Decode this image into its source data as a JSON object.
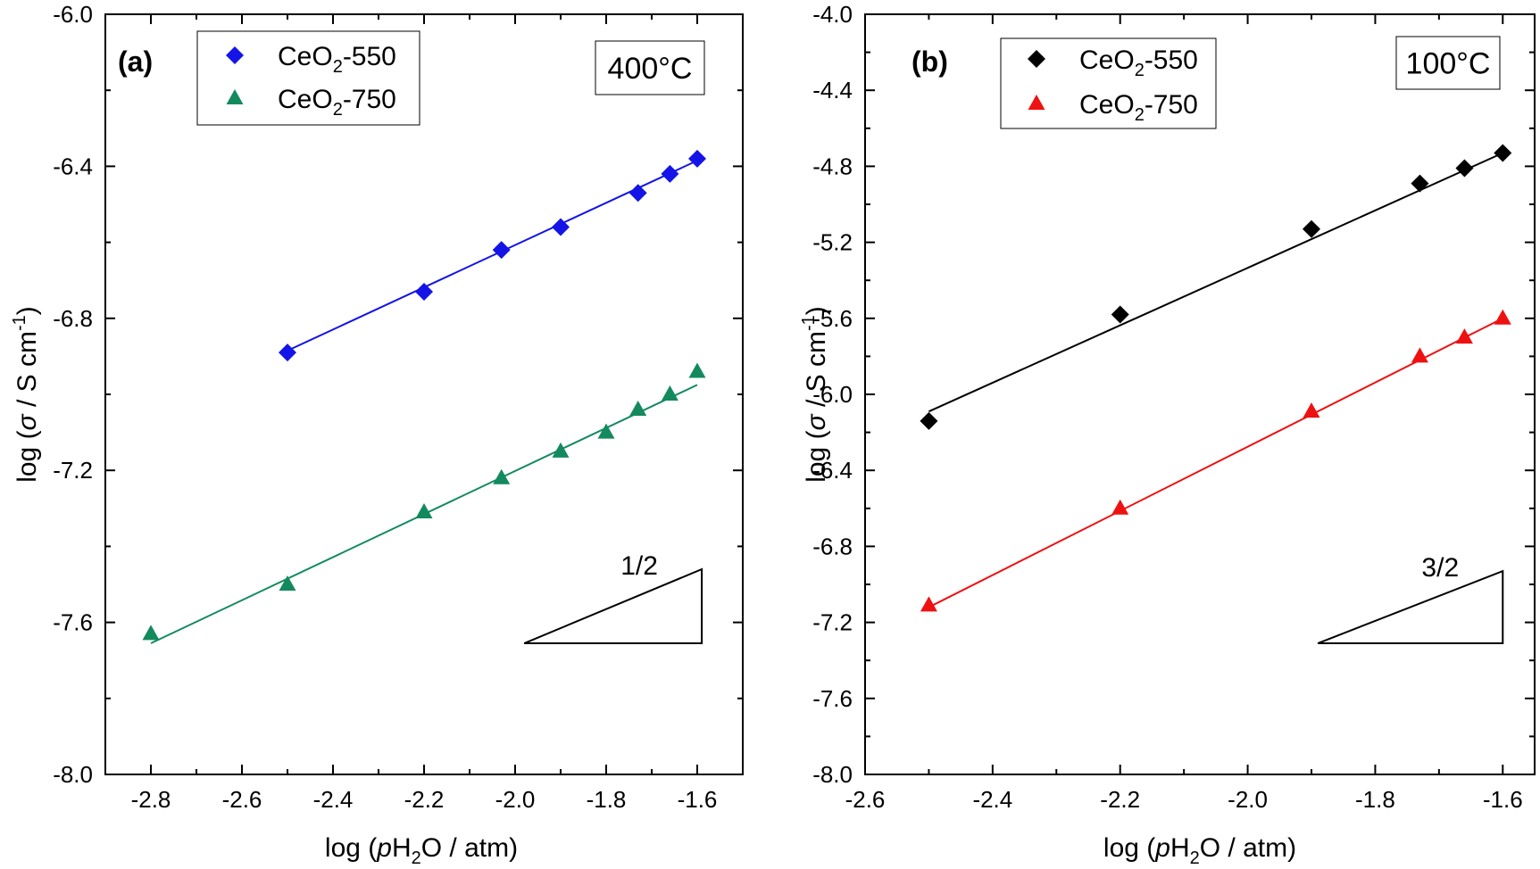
{
  "chart_data": [
    {
      "type": "scatter",
      "panel_label": "(a)",
      "temperature": "400°C",
      "xlabel": {
        "pre": "log (",
        "italic": "p",
        "main": "H",
        "sub": "2",
        "post": "O / atm)"
      },
      "ylabel": {
        "pre": "log (",
        "italic": "σ",
        "post": " / S cm",
        "sup": "-1",
        "close": ")"
      },
      "xlim": [
        -2.9,
        -1.5
      ],
      "ylim": [
        -8.0,
        -6.0
      ],
      "xticks": [
        -2.8,
        -2.6,
        -2.4,
        -2.2,
        -2.0,
        -1.8,
        -1.6
      ],
      "xtick_labels": [
        "-2.8",
        "-2.6",
        "-2.4",
        "-2.2",
        "-2.0",
        "-1.8",
        "-1.6"
      ],
      "yticks": [
        -8.0,
        -7.6,
        -7.2,
        -6.8,
        -6.4,
        -6.0
      ],
      "ytick_labels": [
        "-8.0",
        "-7.6",
        "-7.2",
        "-6.8",
        "-6.4",
        "-6.0"
      ],
      "legend_position": "top-left",
      "series": [
        {
          "name": "CeO₂-550",
          "name_main": "CeO",
          "name_sub": "2",
          "name_post": "-550",
          "marker": "diamond",
          "color": "#1414e6",
          "x": [
            -2.5,
            -2.2,
            -2.03,
            -1.9,
            -1.73,
            -1.66,
            -1.6
          ],
          "y": [
            -6.89,
            -6.73,
            -6.62,
            -6.56,
            -6.47,
            -6.42,
            -6.38
          ],
          "fit": {
            "x": [
              -2.5,
              -1.6
            ],
            "y": [
              -6.885,
              -6.385
            ]
          }
        },
        {
          "name": "CeO₂-750",
          "name_main": "CeO",
          "name_sub": "2",
          "name_post": "-750",
          "marker": "triangle",
          "color": "#138a5e",
          "x": [
            -2.8,
            -2.5,
            -2.2,
            -2.03,
            -1.9,
            -1.8,
            -1.73,
            -1.66,
            -1.6
          ],
          "y": [
            -7.63,
            -7.5,
            -7.31,
            -7.22,
            -7.15,
            -7.1,
            -7.04,
            -7.0,
            -6.94
          ],
          "fit": {
            "x": [
              -2.8,
              -1.6
            ],
            "y": [
              -7.655,
              -6.975
            ]
          }
        }
      ],
      "slope_triangle": {
        "label": "1/2",
        "x": [
          -1.98,
          -1.59
        ],
        "y": [
          -7.655,
          -7.46
        ]
      }
    },
    {
      "type": "scatter",
      "panel_label": "(b)",
      "temperature": "100°C",
      "xlabel": {
        "pre": "log (",
        "italic": "p",
        "main": "H",
        "sub": "2",
        "post": "O / atm)"
      },
      "ylabel": {
        "pre": "log (",
        "italic": "σ",
        "post": " / S cm",
        "sup": "-1",
        "close": ")"
      },
      "xlim": [
        -2.6,
        -1.55
      ],
      "ylim": [
        -8.0,
        -4.0
      ],
      "xticks": [
        -2.6,
        -2.4,
        -2.2,
        -2.0,
        -1.8,
        -1.6
      ],
      "xtick_labels": [
        "-2.6",
        "-2.4",
        "-2.2",
        "-2.0",
        "-1.8",
        "-1.6"
      ],
      "yticks": [
        -8.0,
        -7.6,
        -7.2,
        -6.8,
        -6.4,
        -6.0,
        -5.6,
        -5.2,
        -4.8,
        -4.4,
        -4.0
      ],
      "ytick_labels": [
        "-8.0",
        "-7.6",
        "-7.2",
        "-6.8",
        "-6.4",
        "-6.0",
        "-5.6",
        "-5.2",
        "-4.8",
        "-4.4",
        "-4.0"
      ],
      "legend_position": "top-left",
      "series": [
        {
          "name": "CeO₂-550",
          "name_main": "CeO",
          "name_sub": "2",
          "name_post": "-550",
          "marker": "diamond",
          "color": "#000000",
          "x": [
            -2.5,
            -2.2,
            -1.9,
            -1.73,
            -1.66,
            -1.6
          ],
          "y": [
            -6.14,
            -5.58,
            -5.13,
            -4.89,
            -4.81,
            -4.73
          ],
          "fit": {
            "x": [
              -2.5,
              -1.6
            ],
            "y": [
              -6.09,
              -4.73
            ]
          }
        },
        {
          "name": "CeO₂-750",
          "name_main": "CeO",
          "name_sub": "2",
          "name_post": "-750",
          "marker": "triangle",
          "color": "#ee1111",
          "x": [
            -2.5,
            -2.2,
            -1.9,
            -1.73,
            -1.66,
            -1.6
          ],
          "y": [
            -7.11,
            -6.6,
            -6.09,
            -5.8,
            -5.7,
            -5.6
          ],
          "fit": {
            "x": [
              -2.5,
              -1.6
            ],
            "y": [
              -7.12,
              -5.6
            ]
          }
        }
      ],
      "slope_triangle": {
        "label": "3/2",
        "x": [
          -1.89,
          -1.6
        ],
        "y": [
          -7.31,
          -6.93
        ]
      }
    }
  ]
}
